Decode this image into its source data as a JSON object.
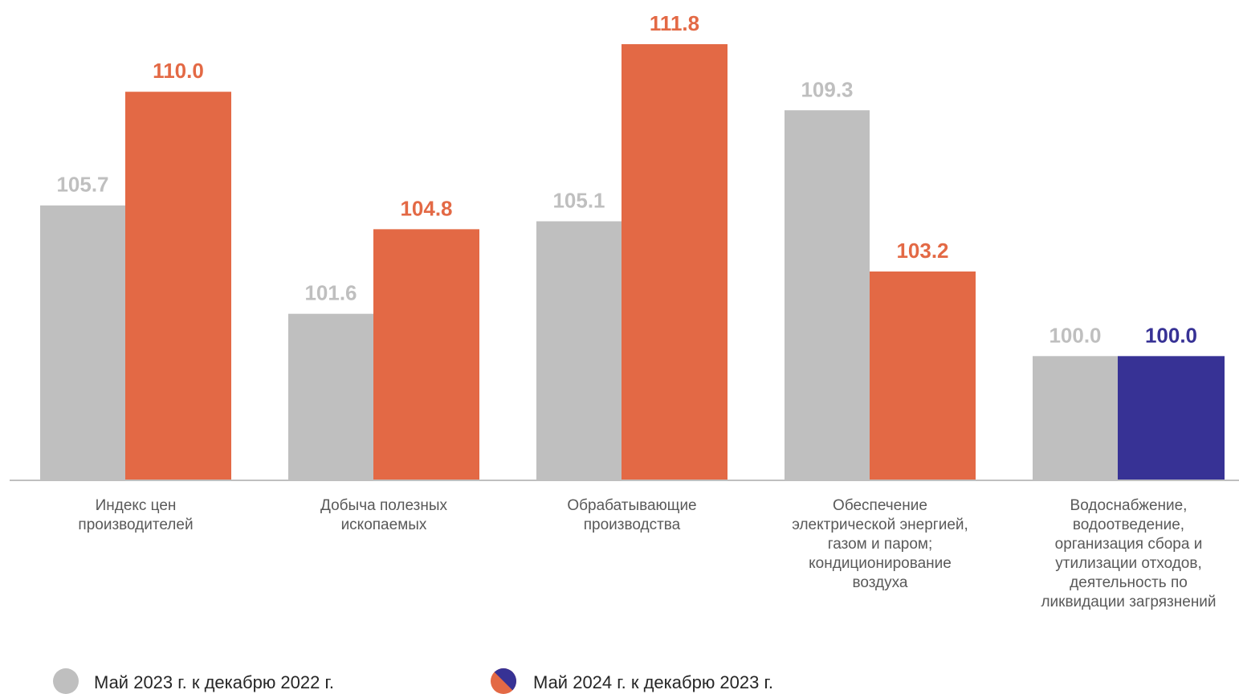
{
  "chart_data": {
    "type": "bar",
    "categories": [
      [
        "Индекс цен",
        "производителей"
      ],
      [
        "Добыча полезных",
        "ископаемых"
      ],
      [
        "Обрабатывающие",
        "производства"
      ],
      [
        "Обеспечение",
        "электрической энергией,",
        "газом и паром;",
        "кондиционирование",
        "воздуха"
      ],
      [
        "Водоснабжение,",
        "водоотведение,",
        "организация сбора и",
        "утилизации отходов,",
        "деятельность по",
        "ликвидации загрязнений"
      ]
    ],
    "series": [
      {
        "name": "Май 2023 г. к декабрю 2022 г.",
        "values": [
          105.7,
          101.6,
          105.1,
          109.3,
          100.0
        ],
        "labels": [
          "105.7",
          "101.6",
          "105.1",
          "109.3",
          "100.0"
        ],
        "color": "#bfbfbf",
        "label_color": "#bfbfbf"
      },
      {
        "name": "Май 2024 г. к декабрю 2023 г.",
        "values": [
          110.0,
          104.8,
          111.8,
          103.2,
          100.0
        ],
        "labels": [
          "110.0",
          "104.8",
          "111.8",
          "103.2",
          "100.0"
        ],
        "color": "#e36945",
        "label_color": "#e36945",
        "point_colors": [
          "#e36945",
          "#e36945",
          "#e36945",
          "#e36945",
          "#373295"
        ]
      }
    ],
    "ylim": [
      95.3,
      113.5
    ],
    "grid": false,
    "legend": "bottom-left",
    "colors": {
      "gray": "#bfbfbf",
      "orange": "#e36945",
      "blue": "#373295",
      "axis": "#bfbfbf"
    }
  }
}
